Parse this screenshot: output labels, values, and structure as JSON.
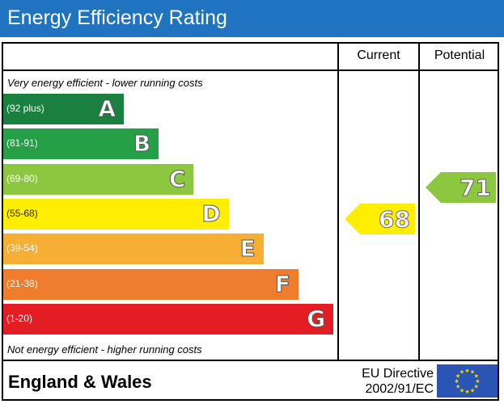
{
  "header": {
    "title": "Energy Efficiency Rating"
  },
  "columns": {
    "current": "Current",
    "potential": "Potential"
  },
  "notes": {
    "top": "Very energy efficient - lower running costs",
    "bottom": "Not energy efficient - higher running costs"
  },
  "chart_data": {
    "type": "bar",
    "title": "Energy Efficiency Rating",
    "bands": [
      {
        "letter": "A",
        "range": "(92 plus)",
        "color": "#1a8040"
      },
      {
        "letter": "B",
        "range": "(81-91)",
        "color": "#26a046"
      },
      {
        "letter": "C",
        "range": "(69-80)",
        "color": "#8dc63f"
      },
      {
        "letter": "D",
        "range": "(55-68)",
        "color": "#ffee00"
      },
      {
        "letter": "E",
        "range": "(39-54)",
        "color": "#f6ae35"
      },
      {
        "letter": "F",
        "range": "(21-38)",
        "color": "#ef7d2d"
      },
      {
        "letter": "G",
        "range": "(1-20)",
        "color": "#e31d23"
      }
    ],
    "current": {
      "value": 68,
      "band": "D",
      "color": "#ffee00"
    },
    "potential": {
      "value": 71,
      "band": "C",
      "color": "#8dc63f"
    }
  },
  "footer": {
    "region": "England & Wales",
    "directive_line1": "EU Directive",
    "directive_line2": "2002/91/EC"
  }
}
